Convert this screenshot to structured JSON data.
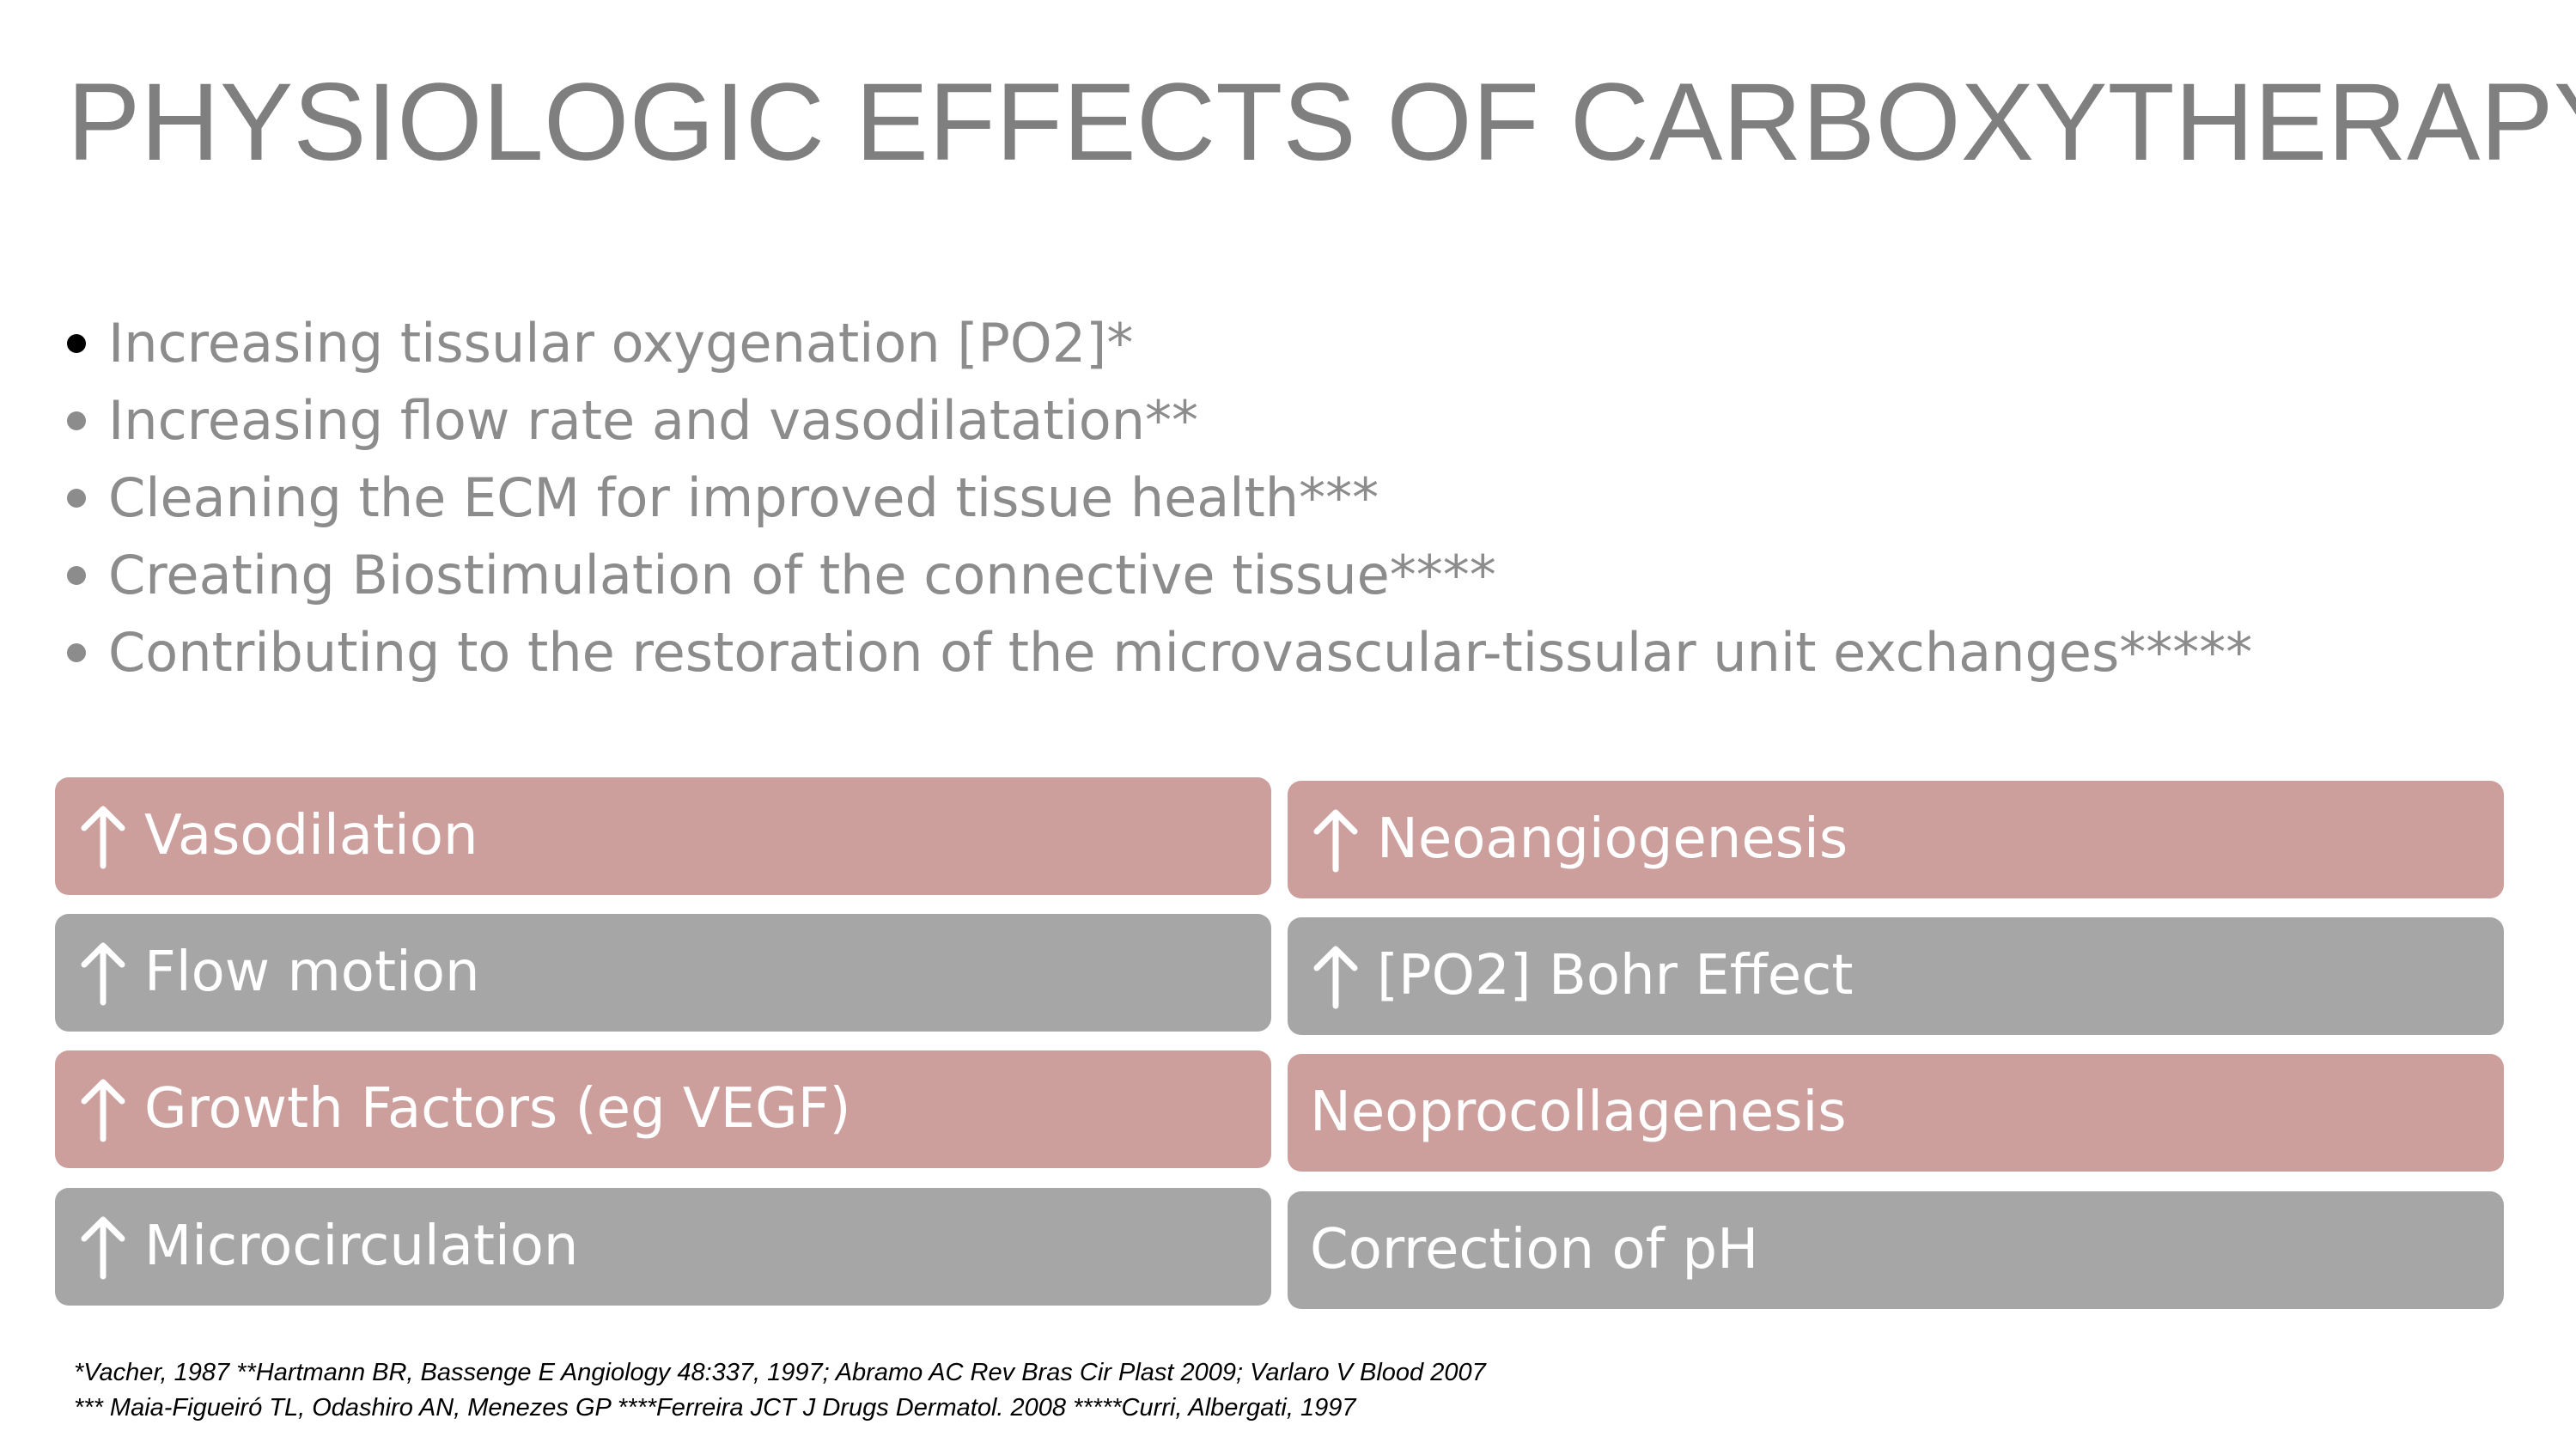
{
  "title": "PHYSIOLOGIC EFFECTS OF CARBOXYTHERAPY",
  "bullets": [
    "Increasing tissular oxygenation [PO2]*",
    "Increasing flow rate and vasodilatation**",
    "Cleaning the ECM for improved tissue health***",
    "Creating Biostimulation of the connective tissue****",
    "Contributing to the restoration of the microvascular-tissular unit exchanges*****"
  ],
  "boxes": {
    "left": [
      {
        "label": "Vasodilation",
        "icon": "arrow-up-icon",
        "color": "#cc9f9d"
      },
      {
        "label": "Flow motion",
        "icon": "arrow-up-icon",
        "color": "#a6a6a6"
      },
      {
        "label": "Growth Factors (eg VEGF)",
        "icon": "arrow-up-icon",
        "color": "#cc9f9d"
      },
      {
        "label": "Microcirculation",
        "icon": "arrow-up-icon",
        "color": "#a6a6a6"
      }
    ],
    "right": [
      {
        "label": "Neoangiogenesis",
        "icon": "arrow-up-icon",
        "color": "#cc9f9d"
      },
      {
        "label": "[PO2] Bohr Effect",
        "icon": "arrow-up-icon",
        "color": "#a6a6a6"
      },
      {
        "label": "Neoprocollagenesis",
        "color": "#cc9f9d"
      },
      {
        "label": "Correction of pH",
        "color": "#a6a6a6"
      }
    ]
  },
  "references": [
    "*Vacher, 1987 **Hartmann BR, Bassenge E Angiology 48:337, 1997; Abramo AC Rev Bras Cir Plast 2009; Varlaro V Blood 2007",
    "*** Maia-Figueiró TL, Odashiro AN, Menezes GP ****Ferreira JCT J Drugs Dermatol. 2008 *****Curri, Albergati, 1997"
  ]
}
